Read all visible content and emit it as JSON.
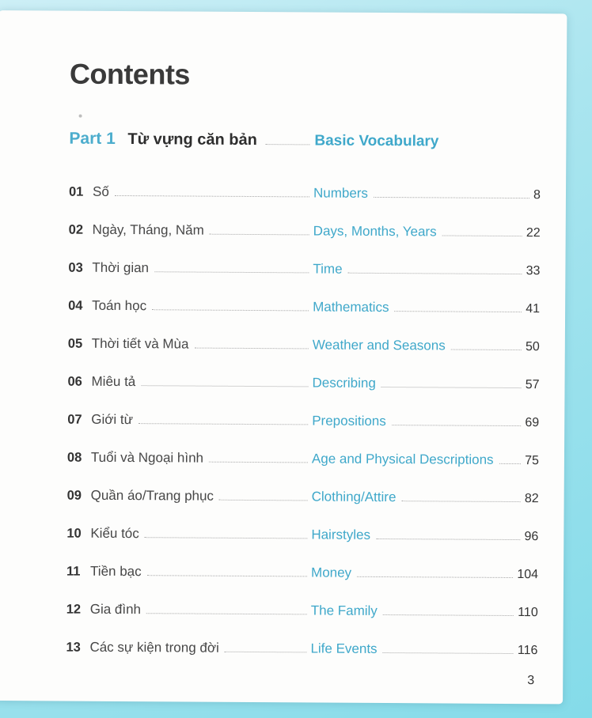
{
  "page": {
    "title": "Contents",
    "page_number": "3",
    "part": {
      "label": "Part 1",
      "title_vi": "Từ vựng căn bản",
      "title_en": "Basic Vocabulary"
    },
    "entries": [
      {
        "num": "01",
        "vi": "Số",
        "en": "Numbers",
        "page": "8"
      },
      {
        "num": "02",
        "vi": "Ngày, Tháng, Năm",
        "en": "Days, Months, Years",
        "page": "22"
      },
      {
        "num": "03",
        "vi": "Thời gian",
        "en": "Time",
        "page": "33"
      },
      {
        "num": "04",
        "vi": "Toán học",
        "en": "Mathematics",
        "page": "41"
      },
      {
        "num": "05",
        "vi": "Thời tiết và Mùa",
        "en": "Weather and Seasons",
        "page": "50"
      },
      {
        "num": "06",
        "vi": "Miêu tả",
        "en": "Describing",
        "page": "57"
      },
      {
        "num": "07",
        "vi": "Giới từ",
        "en": "Prepositions",
        "page": "69"
      },
      {
        "num": "08",
        "vi": "Tuổi và Ngoại hình",
        "en": "Age and Physical Descriptions",
        "page": "75"
      },
      {
        "num": "09",
        "vi": "Quần áo/Trang phục",
        "en": "Clothing/Attire",
        "page": "82"
      },
      {
        "num": "10",
        "vi": "Kiểu tóc",
        "en": "Hairstyles",
        "page": "96"
      },
      {
        "num": "11",
        "vi": "Tiền bạc",
        "en": "Money",
        "page": "104"
      },
      {
        "num": "12",
        "vi": "Gia đình",
        "en": "The Family",
        "page": "110"
      },
      {
        "num": "13",
        "vi": "Các sự kiện trong đời",
        "en": "Life Events",
        "page": "116"
      }
    ],
    "colors": {
      "accent_teal": "#3fa8ca",
      "text_dark": "#3a3a3a",
      "border_cyan": "#9ae1ec"
    }
  }
}
